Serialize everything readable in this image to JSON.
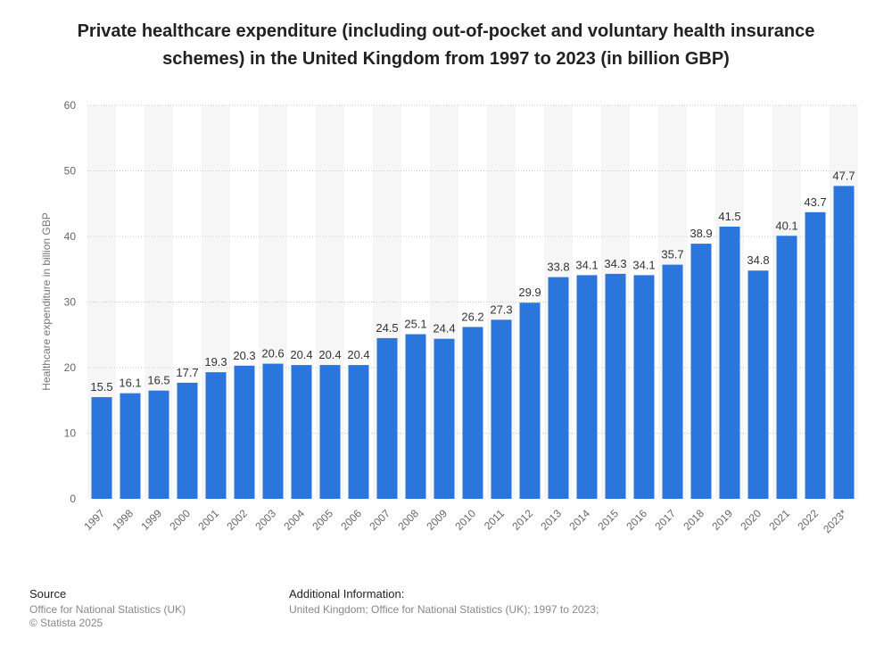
{
  "chart_data": {
    "type": "bar",
    "title": "Private healthcare expenditure (including out-of-pocket and voluntary health insurance schemes) in the United Kingdom from 1997 to 2023 (in billion GBP)",
    "xlabel": "",
    "ylabel": "Healthcare expenditure in billion GBP",
    "ylim": [
      0,
      60
    ],
    "yticks": [
      0,
      10,
      20,
      30,
      40,
      50,
      60
    ],
    "grid": true,
    "categories": [
      "1997",
      "1998",
      "1999",
      "2000",
      "2001",
      "2002",
      "2003",
      "2004",
      "2005",
      "2006",
      "2007",
      "2008",
      "2009",
      "2010",
      "2011",
      "2012",
      "2013",
      "2014",
      "2015",
      "2016",
      "2017",
      "2018",
      "2019",
      "2020",
      "2021",
      "2022",
      "2023*"
    ],
    "values": [
      15.5,
      16.1,
      16.5,
      17.7,
      19.3,
      20.3,
      20.6,
      20.4,
      20.4,
      20.4,
      24.5,
      25.1,
      24.4,
      26.2,
      27.3,
      29.9,
      33.8,
      34.1,
      34.3,
      34.1,
      35.7,
      38.9,
      41.5,
      34.8,
      40.1,
      43.7,
      47.7
    ],
    "bar_color": "#2a76dd"
  },
  "footer": {
    "source_heading": "Source",
    "source_lines": [
      "Office for National Statistics (UK)",
      "© Statista 2025"
    ],
    "info_heading": "Additional Information:",
    "info_line": "United Kingdom; Office for National Statistics (UK); 1997 to 2023;"
  }
}
